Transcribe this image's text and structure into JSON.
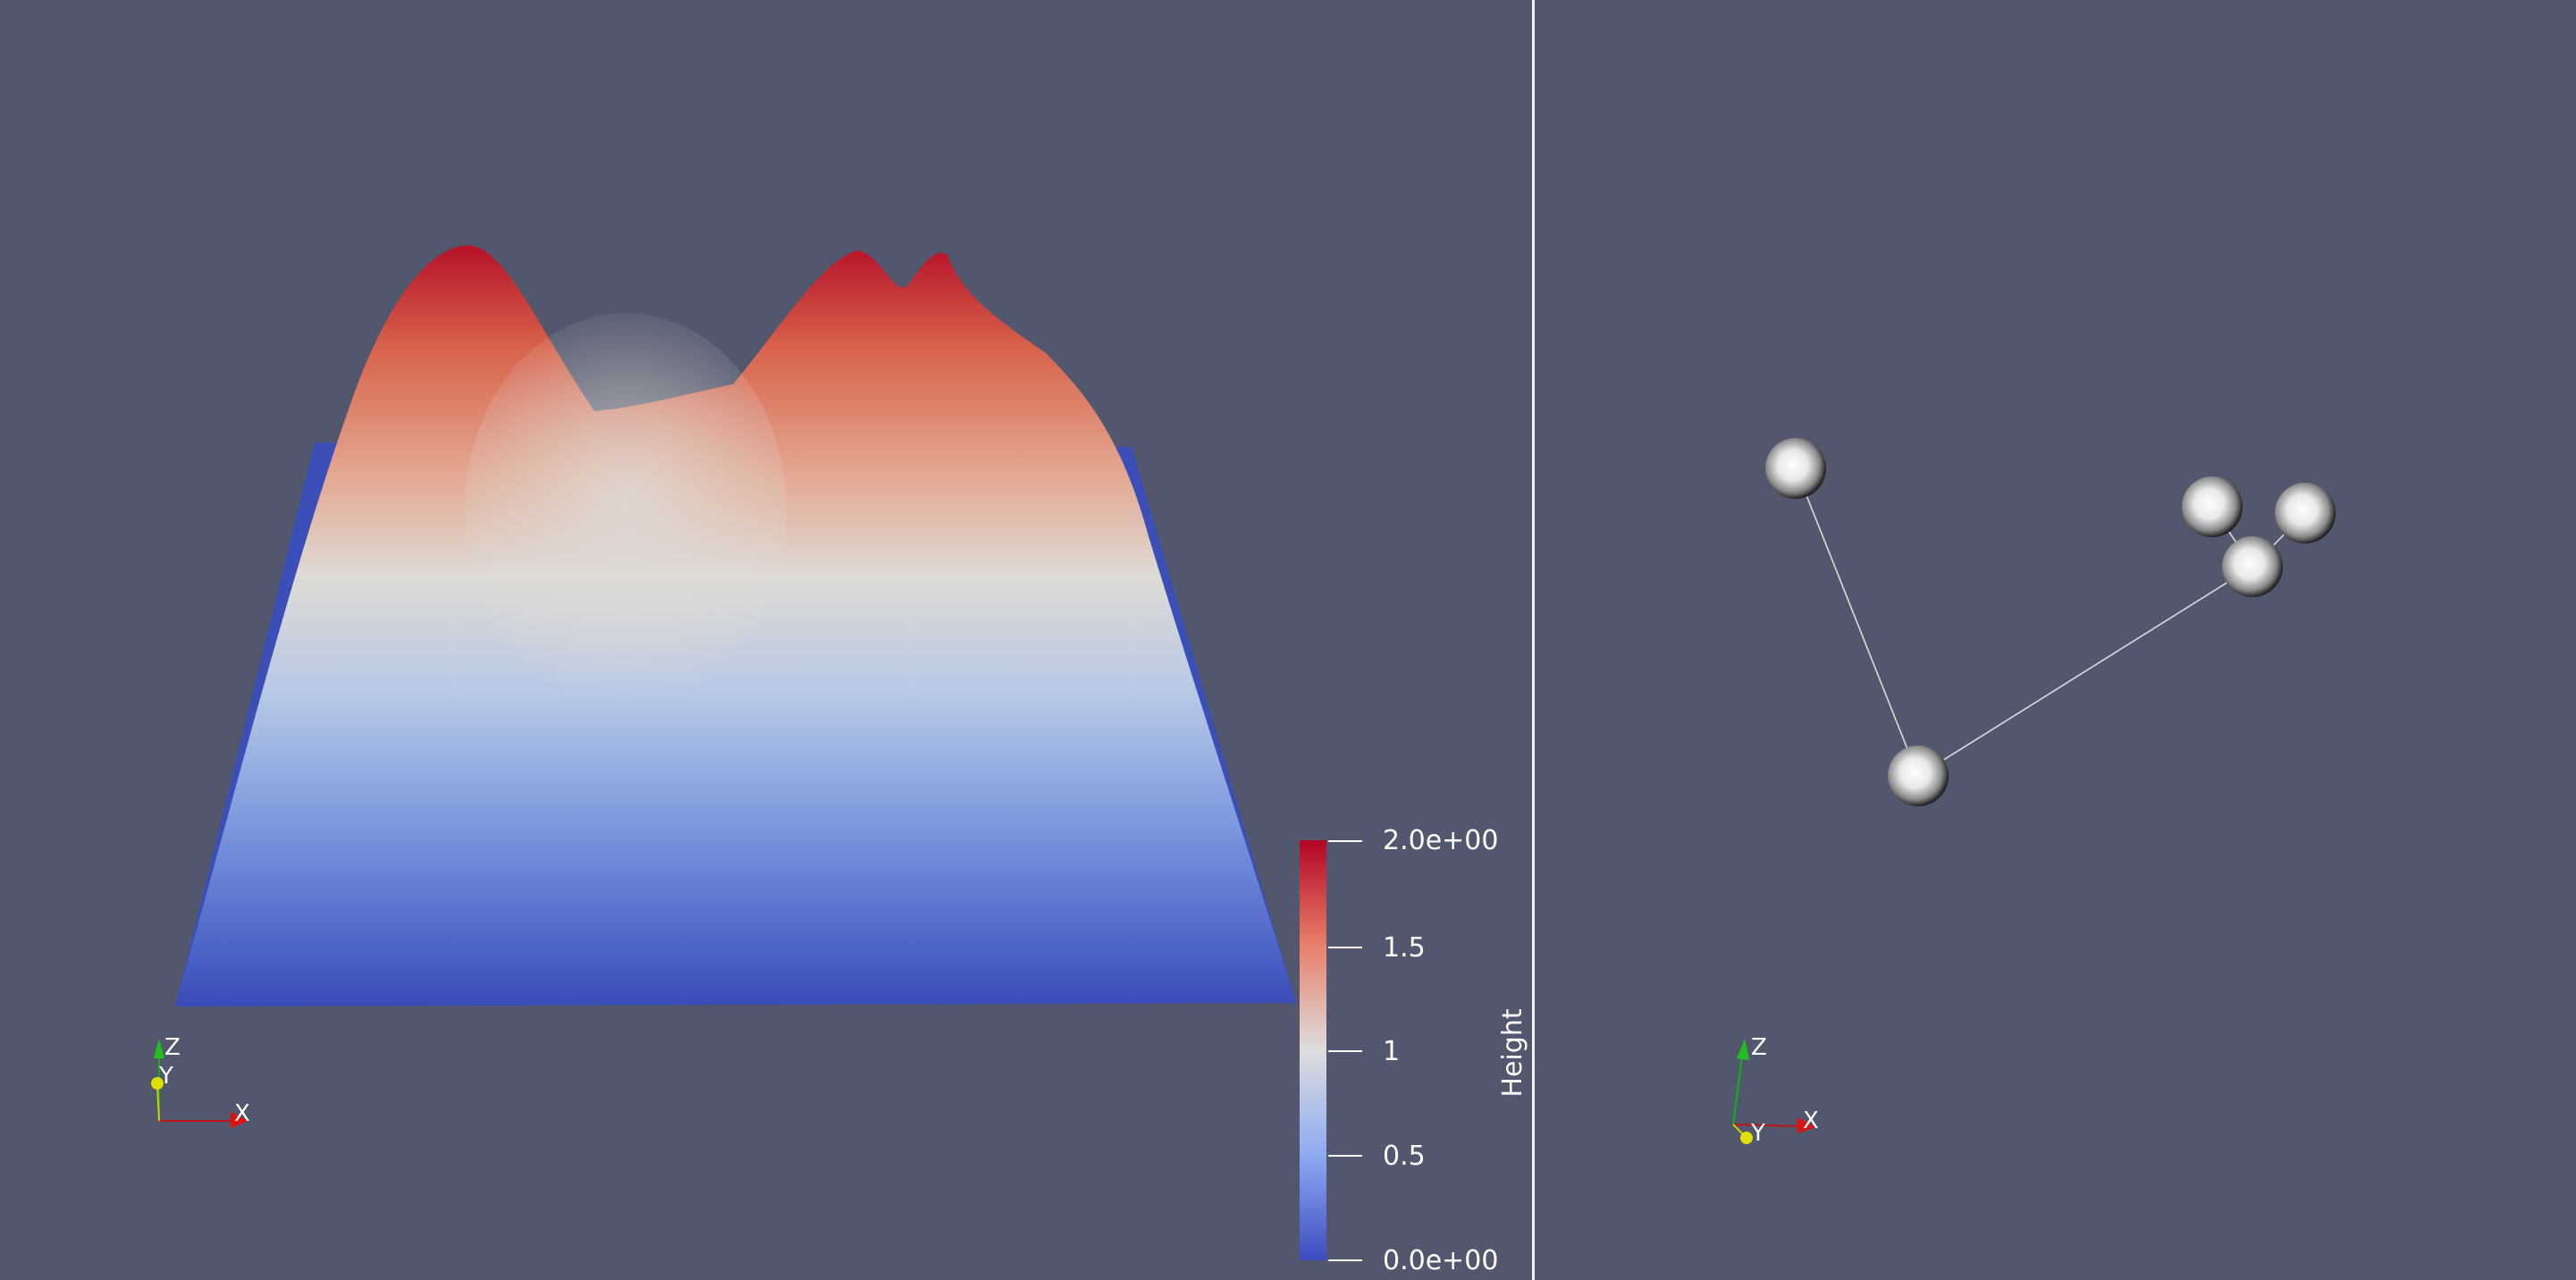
{
  "left_view": {
    "scalar_bar": {
      "title": "Height",
      "tick_labels": [
        "2.0e+00",
        "1.5",
        "1",
        "0.5",
        "0.0e+00"
      ],
      "range": [
        0,
        2
      ],
      "colormap": [
        "#3b4cc0",
        "#dddddd",
        "#b40426"
      ]
    },
    "orientation_axes": {
      "x_label": "X",
      "y_label": "Y",
      "z_label": "Z"
    }
  },
  "right_view": {
    "orientation_axes": {
      "x_label": "X",
      "y_label": "Y",
      "z_label": "Z"
    }
  },
  "colors": {
    "background": "#52576e",
    "divider": "#f2f2f2",
    "x_axis": "#d01010",
    "y_axis": "#e0e000",
    "z_axis": "#10c010"
  }
}
